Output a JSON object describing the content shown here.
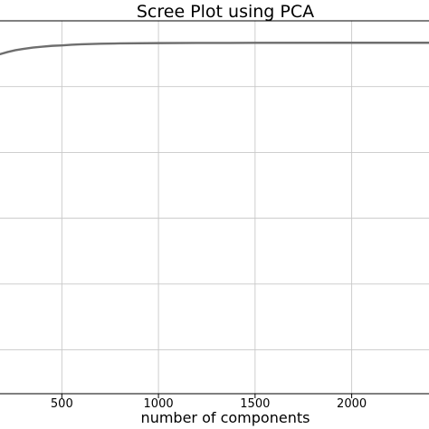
{
  "chart_data": {
    "type": "line",
    "title": "Scree Plot using PCA",
    "xlabel": "number of components",
    "ylabel": "",
    "xlim": [
      180,
      2400
    ],
    "ylim": [
      0.2,
      1.05
    ],
    "x_ticks": [
      {
        "value": 500,
        "label": "500"
      },
      {
        "value": 1000,
        "label": "1000"
      },
      {
        "value": 1500,
        "label": "1500"
      },
      {
        "value": 2000,
        "label": "2000"
      }
    ],
    "y_gridlines": [
      0.3,
      0.45,
      0.6,
      0.75,
      0.9
    ],
    "grid": true,
    "series": [
      {
        "color": "#6e6e6e",
        "x": [
          180,
          220,
          260,
          300,
          350,
          400,
          450,
          500,
          550,
          600,
          700,
          800,
          1000,
          1200,
          1500,
          2000,
          2400
        ],
        "y": [
          0.974,
          0.979,
          0.983,
          0.986,
          0.989,
          0.991,
          0.993,
          0.994,
          0.9955,
          0.9965,
          0.9978,
          0.9985,
          0.9992,
          0.9995,
          0.9998,
          1.0,
          1.0
        ]
      }
    ]
  }
}
